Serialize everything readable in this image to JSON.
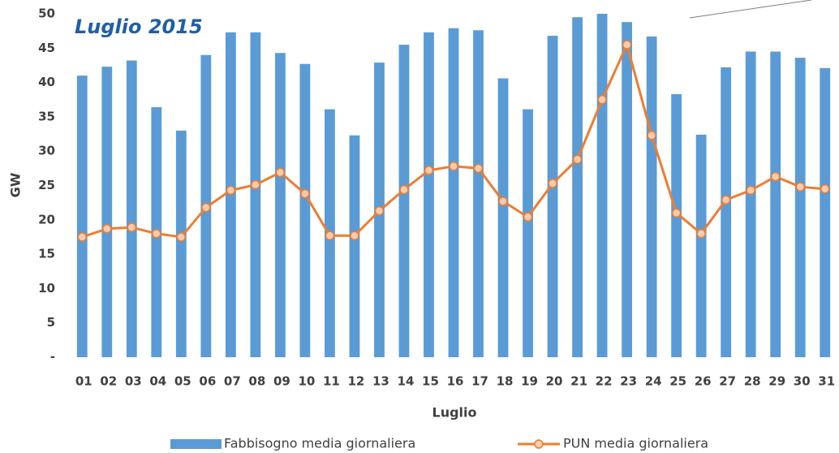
{
  "chart_data": {
    "type": "bar-line",
    "annotation": "Luglio 2015",
    "y_label": "GW",
    "x_label": "Luglio",
    "categories": [
      "01",
      "02",
      "03",
      "04",
      "05",
      "06",
      "07",
      "08",
      "09",
      "10",
      "11",
      "12",
      "13",
      "14",
      "15",
      "16",
      "17",
      "18",
      "19",
      "20",
      "21",
      "22",
      "23",
      "24",
      "25",
      "26",
      "27",
      "28",
      "29",
      "30",
      "31"
    ],
    "series": [
      {
        "name": "Fabbisogno media giornaliera",
        "type": "bar",
        "color": "#5b9bd5",
        "values": [
          41,
          42.3,
          43.2,
          36.4,
          33,
          44,
          47.3,
          47.3,
          44.3,
          42.7,
          36.1,
          32.3,
          42.9,
          45.5,
          47.3,
          47.9,
          47.6,
          40.6,
          36.1,
          46.8,
          49.5,
          50,
          48.8,
          46.7,
          38.3,
          32.4,
          42.2,
          44.5,
          44.5,
          43.6,
          42.1
        ]
      },
      {
        "name": "PUN media giornaliera",
        "type": "line",
        "color": "#ed7d31",
        "values": [
          17.5,
          18.7,
          18.9,
          18,
          17.5,
          21.8,
          24.3,
          25.1,
          26.9,
          23.8,
          17.7,
          17.7,
          21.3,
          24.4,
          27.2,
          27.8,
          27.5,
          22.7,
          20.4,
          25.3,
          28.8,
          37.5,
          45.5,
          32.3,
          21,
          18,
          22.9,
          24.3,
          26.3,
          24.8,
          24.5
        ]
      }
    ],
    "ylim": [
      0,
      50
    ],
    "yticks": [
      {
        "value": 0,
        "label": "-"
      },
      5,
      10,
      15,
      20,
      25,
      30,
      35,
      40,
      45,
      50
    ],
    "grid": false
  }
}
